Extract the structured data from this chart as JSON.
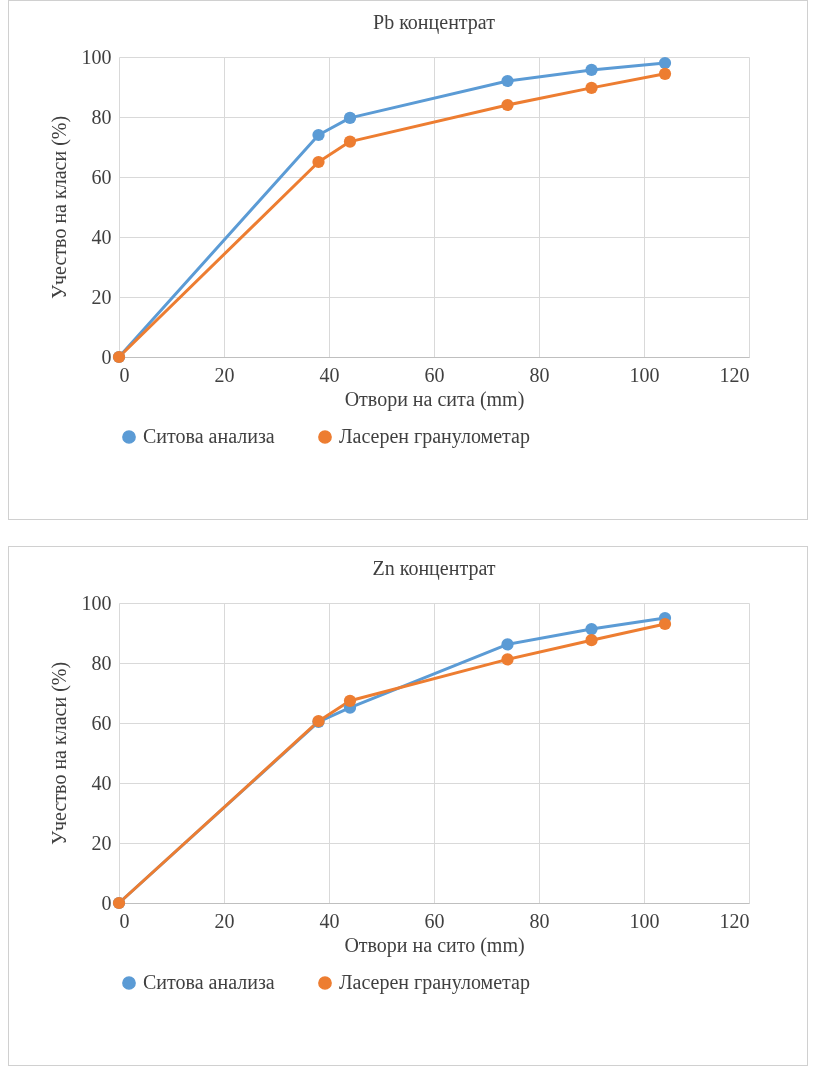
{
  "chart_data": [
    {
      "type": "line",
      "title": "Pb концентрат",
      "xlabel": "Отвори на сита (mm)",
      "ylabel": "Учество на класи (%)",
      "x": [
        0,
        38,
        44,
        74,
        90,
        104
      ],
      "xlim": [
        0,
        120
      ],
      "xticks": [
        0,
        20,
        40,
        60,
        80,
        100,
        120
      ],
      "ylim": [
        0,
        100
      ],
      "yticks": [
        0,
        20,
        40,
        60,
        80,
        100
      ],
      "grid": true,
      "legend": "bottom",
      "marker": "circle",
      "series": [
        {
          "name": "Ситова анализа",
          "color": "#5b9bd5",
          "values": [
            0,
            74,
            79.7,
            92,
            95.7,
            98
          ]
        },
        {
          "name": "Ласерен гранулометар",
          "color": "#ed7d31",
          "values": [
            0,
            65,
            71.8,
            84,
            89.7,
            94.4
          ]
        }
      ]
    },
    {
      "type": "line",
      "title": "Zn концентрат",
      "xlabel": "Отвори на сито (mm)",
      "ylabel": "Учество на класи (%)",
      "x": [
        0,
        38,
        44,
        74,
        90,
        104
      ],
      "xlim": [
        0,
        120
      ],
      "xticks": [
        0,
        20,
        40,
        60,
        80,
        100,
        120
      ],
      "ylim": [
        0,
        100
      ],
      "yticks": [
        0,
        20,
        40,
        60,
        80,
        100
      ],
      "grid": true,
      "legend": "bottom",
      "marker": "circle",
      "series": [
        {
          "name": "Ситова анализа",
          "color": "#5b9bd5",
          "values": [
            0,
            60.4,
            65.1,
            86.2,
            91.3,
            95
          ]
        },
        {
          "name": "Ласерен гранулометар",
          "color": "#ed7d31",
          "values": [
            0,
            60.6,
            67.4,
            81.2,
            87.6,
            93
          ]
        }
      ]
    }
  ]
}
